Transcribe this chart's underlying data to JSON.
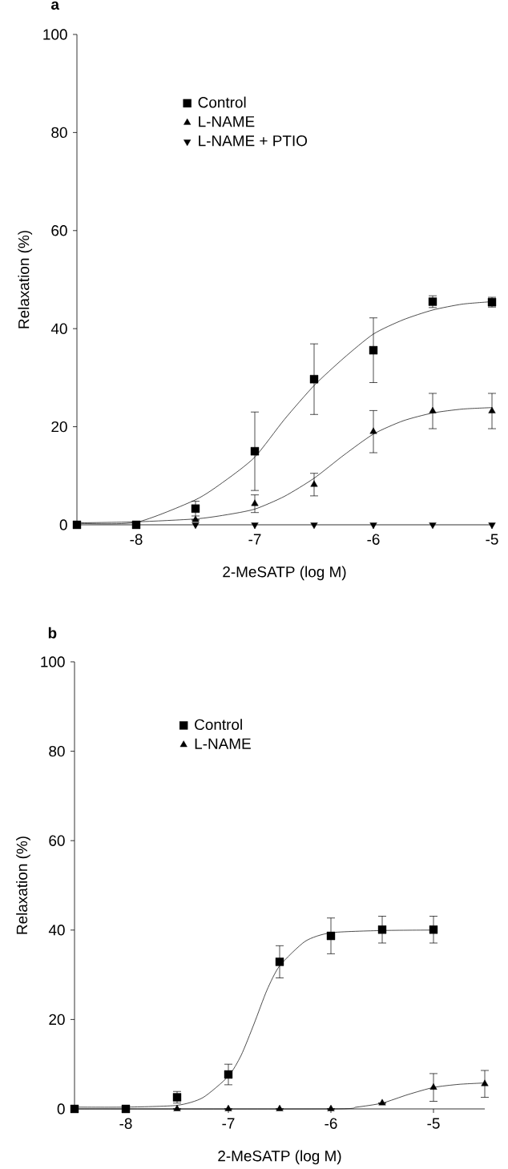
{
  "chart_data": [
    {
      "type": "scatter",
      "title": "a",
      "xlabel": "2-MeSATP (log M)",
      "ylabel": "Relaxation (%)",
      "x": [
        -8.5,
        -8,
        -7.5,
        -7,
        -6.5,
        -6,
        -5.5,
        -5
      ],
      "xlim": [
        -8.5,
        -5
      ],
      "xticks": [
        -8,
        -7,
        -6,
        -5
      ],
      "ylim": [
        0,
        100
      ],
      "yticks": [
        0,
        20,
        40,
        60,
        80,
        100
      ],
      "legend": "top left",
      "grid": false,
      "series": [
        {
          "type": "line",
          "color": "#000000",
          "marker": "none",
          "x": [
            -8.5,
            -8,
            -7.5,
            -7.25,
            -7,
            -6.75,
            -6.5,
            -6.25,
            -6,
            -5.75,
            -5.5,
            -5.25,
            -5
          ],
          "values": [
            0.3,
            0.5,
            5.1,
            9,
            13.8,
            21.5,
            28.4,
            34,
            38.9,
            41.8,
            43.8,
            45,
            45.5
          ]
        },
        {
          "type": "line",
          "color": "#000000",
          "marker": "none",
          "x": [
            -8.5,
            -8,
            -7.5,
            -7.25,
            -7,
            -6.75,
            -6.5,
            -6.25,
            -6,
            -5.75,
            -5.5,
            -5.25,
            -5
          ],
          "values": [
            0.4,
            0.6,
            1.2,
            2,
            3.2,
            5.8,
            9.5,
            14.2,
            18.5,
            21.2,
            22.8,
            23.6,
            23.9
          ]
        },
        {
          "name": "Control",
          "color": "#000000",
          "marker": "square",
          "values": [
            0,
            0,
            3.3,
            15,
            29.7,
            35.6,
            45.5,
            45.4
          ],
          "errors": [
            null,
            null,
            1.5,
            8,
            7.2,
            6.6,
            1.2,
            1
          ]
        },
        {
          "name": "L-NAME",
          "color": "#000000",
          "marker": "triangle",
          "values": [
            null,
            null,
            1,
            4.3,
            8.2,
            19,
            23.2,
            23.2
          ],
          "errors": [
            null,
            null,
            null,
            1.8,
            2.3,
            4.3,
            3.6,
            3.6
          ]
        },
        {
          "name": "L-NAME + PTIO",
          "color": "#000000",
          "marker": "triangle-down",
          "values": [
            null,
            null,
            0,
            0,
            0,
            0,
            0,
            0
          ]
        }
      ]
    },
    {
      "type": "scatter",
      "title": "b",
      "xlabel": "2-MeSATP (log M)",
      "ylabel": "Relaxation (%)",
      "x": [
        -8.5,
        -8,
        -7.5,
        -7,
        -6.5,
        -6,
        -5.5,
        -5,
        -4.5
      ],
      "xlim": [
        -8.5,
        -4.5
      ],
      "xticks": [
        -8,
        -7,
        -6,
        -5
      ],
      "ylim": [
        0,
        100
      ],
      "yticks": [
        0,
        20,
        40,
        60,
        80,
        100
      ],
      "legend": "top left",
      "grid": false,
      "series": [
        {
          "type": "line",
          "color": "#000000",
          "marker": "none",
          "x": [
            -8.5,
            -8,
            -7.5,
            -7.25,
            -7,
            -6.875,
            -6.75,
            -6.625,
            -6.5,
            -6.25,
            -6,
            -5.5,
            -5
          ],
          "values": [
            0.4,
            0.4,
            0.8,
            2.5,
            7.3,
            12,
            19,
            26.5,
            32,
            37.5,
            39.4,
            39.9,
            40
          ]
        },
        {
          "type": "line",
          "color": "#000000",
          "marker": "none",
          "x": [
            -8.5,
            -6,
            -5.75,
            -5.5,
            -5.25,
            -5,
            -4.75,
            -4.5
          ],
          "values": [
            0,
            0,
            0.4,
            1.3,
            3.2,
            4.8,
            5.5,
            5.8
          ]
        },
        {
          "name": "Control",
          "color": "#000000",
          "marker": "square",
          "values": [
            0,
            0,
            2.6,
            7.7,
            32.9,
            38.7,
            40.1,
            40.1,
            null
          ],
          "errors": [
            null,
            null,
            1.3,
            2.3,
            3.6,
            4,
            3,
            3,
            null
          ]
        },
        {
          "name": "L-NAME",
          "color": "#000000",
          "marker": "triangle",
          "values": [
            null,
            null,
            0,
            0,
            0,
            0,
            1.3,
            4.8,
            5.6
          ],
          "errors": [
            null,
            null,
            null,
            null,
            null,
            null,
            null,
            3.1,
            3
          ]
        }
      ]
    }
  ]
}
